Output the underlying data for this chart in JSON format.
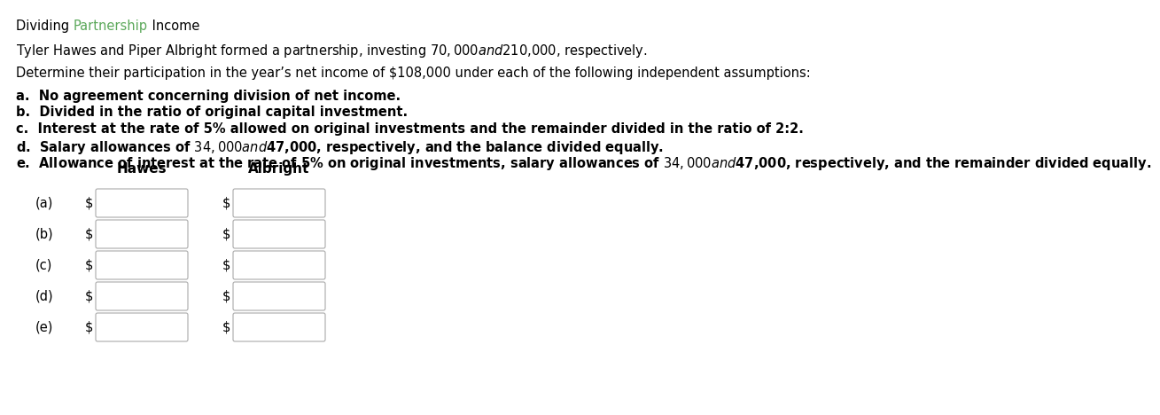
{
  "title_part1": "Dividing ",
  "title_part2": "Partnership",
  "title_part3": " Income",
  "title_color1": "#000000",
  "title_color2": "#5ba85a",
  "title_color3": "#000000",
  "line1": "Tyler Hawes and Piper Albright formed a partnership, investing $70,000 and $210,000, respectively.",
  "line2": "Determine their participation in the year’s net income of $108,000 under each of the following independent assumptions:",
  "items": [
    "a.  No agreement concerning division of net income.",
    "b.  Divided in the ratio of original capital investment.",
    "c.  Interest at the rate of 5% allowed on original investments and the remainder divided in the ratio of 2:2.",
    "d.  Salary allowances of $34,000 and $47,000, respectively, and the balance divided equally.",
    "e.  Allowance of interest at the rate of 5% on original investments, salary allowances of $34,000 and $47,000, respectively, and the remainder divided equally."
  ],
  "col_headers": [
    "Hawes",
    "Albright"
  ],
  "row_labels": [
    "(a)",
    "(b)",
    "(c)",
    "(d)",
    "(e)"
  ],
  "bg_color": "#ffffff",
  "text_color": "#000000",
  "box_edgecolor": "#aaaaaa",
  "box_facecolor": "#ffffff",
  "title_fontsize": 10.5,
  "body_fontsize": 10.5,
  "header_fontsize": 11.0
}
